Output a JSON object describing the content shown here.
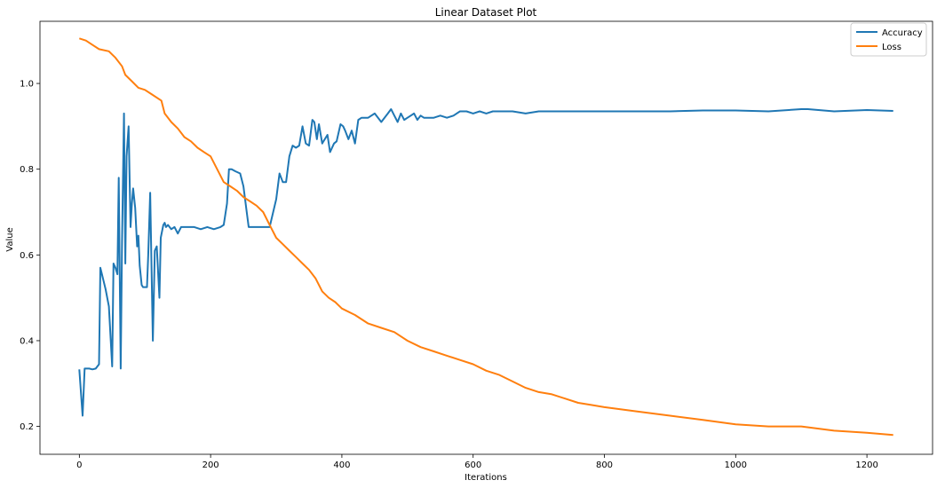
{
  "chart_data": {
    "type": "line",
    "title": "Linear Dataset Plot",
    "xlabel": "Iterations",
    "ylabel": "Value",
    "xlim": [
      -60,
      1300
    ],
    "ylim": [
      0.135,
      1.145
    ],
    "xticks": [
      0,
      200,
      400,
      600,
      800,
      1000,
      1200
    ],
    "xtick_labels": [
      "0",
      "200",
      "400",
      "600",
      "800",
      "1000",
      "1200"
    ],
    "yticks": [
      0.2,
      0.4,
      0.6,
      0.8,
      1.0
    ],
    "ytick_labels": [
      "0.2",
      "0.4",
      "0.6",
      "0.8",
      "1.0"
    ],
    "grid": false,
    "legend_position": "top-right",
    "series": [
      {
        "name": "Accuracy",
        "color": "#1f77b4",
        "x": [
          0,
          5,
          8,
          15,
          20,
          25,
          30,
          32,
          40,
          45,
          50,
          52,
          55,
          58,
          60,
          63,
          65,
          68,
          70,
          72,
          75,
          78,
          80,
          82,
          85,
          88,
          90,
          92,
          95,
          97,
          100,
          103,
          105,
          108,
          112,
          115,
          118,
          122,
          124,
          128,
          130,
          132,
          135,
          140,
          145,
          150,
          155,
          158,
          165,
          175,
          185,
          195,
          205,
          215,
          220,
          225,
          228,
          232,
          238,
          245,
          250,
          255,
          258,
          262,
          270,
          280,
          290,
          300,
          305,
          310,
          315,
          320,
          325,
          330,
          335,
          340,
          345,
          350,
          355,
          358,
          362,
          365,
          370,
          372,
          378,
          382,
          388,
          392,
          398,
          402,
          405,
          410,
          415,
          420,
          425,
          430,
          440,
          450,
          460,
          470,
          475,
          480,
          485,
          490,
          495,
          500,
          505,
          510,
          515,
          520,
          525,
          530,
          540,
          550,
          560,
          570,
          580,
          590,
          600,
          610,
          620,
          630,
          640,
          660,
          680,
          700,
          720,
          740,
          760,
          800,
          850,
          870,
          900,
          950,
          1000,
          1050,
          1100,
          1110,
          1150,
          1200,
          1240
        ],
        "values": [
          0.333,
          0.225,
          0.335,
          0.335,
          0.333,
          0.335,
          0.345,
          0.57,
          0.52,
          0.48,
          0.34,
          0.58,
          0.57,
          0.555,
          0.78,
          0.335,
          0.63,
          0.93,
          0.58,
          0.83,
          0.9,
          0.665,
          0.72,
          0.755,
          0.71,
          0.62,
          0.645,
          0.575,
          0.53,
          0.525,
          0.525,
          0.525,
          0.6,
          0.745,
          0.4,
          0.61,
          0.62,
          0.5,
          0.64,
          0.67,
          0.675,
          0.665,
          0.67,
          0.66,
          0.665,
          0.65,
          0.665,
          0.665,
          0.665,
          0.665,
          0.66,
          0.665,
          0.66,
          0.665,
          0.67,
          0.72,
          0.8,
          0.8,
          0.795,
          0.79,
          0.76,
          0.7,
          0.665,
          0.665,
          0.665,
          0.665,
          0.665,
          0.73,
          0.79,
          0.77,
          0.77,
          0.83,
          0.855,
          0.85,
          0.855,
          0.9,
          0.86,
          0.855,
          0.915,
          0.91,
          0.87,
          0.905,
          0.86,
          0.865,
          0.88,
          0.84,
          0.86,
          0.865,
          0.905,
          0.9,
          0.89,
          0.87,
          0.89,
          0.86,
          0.915,
          0.92,
          0.92,
          0.93,
          0.91,
          0.93,
          0.94,
          0.925,
          0.91,
          0.93,
          0.915,
          0.92,
          0.925,
          0.93,
          0.915,
          0.925,
          0.92,
          0.92,
          0.92,
          0.925,
          0.92,
          0.925,
          0.935,
          0.935,
          0.93,
          0.935,
          0.93,
          0.935,
          0.935,
          0.935,
          0.93,
          0.935,
          0.935,
          0.935,
          0.935,
          0.935,
          0.935,
          0.935,
          0.935,
          0.937,
          0.937,
          0.935,
          0.94,
          0.94,
          0.935,
          0.938,
          0.936
        ]
      },
      {
        "name": "Loss",
        "color": "#ff7f0e",
        "x": [
          0,
          10,
          20,
          30,
          45,
          55,
          65,
          70,
          80,
          90,
          100,
          110,
          125,
          130,
          140,
          150,
          160,
          170,
          180,
          190,
          200,
          210,
          220,
          230,
          240,
          250,
          260,
          270,
          280,
          290,
          300,
          310,
          320,
          330,
          340,
          350,
          360,
          370,
          380,
          390,
          400,
          420,
          440,
          460,
          480,
          500,
          520,
          540,
          560,
          580,
          600,
          620,
          640,
          660,
          680,
          700,
          720,
          740,
          760,
          780,
          800,
          850,
          900,
          950,
          1000,
          1050,
          1100,
          1150,
          1200,
          1240
        ],
        "values": [
          1.105,
          1.1,
          1.09,
          1.08,
          1.075,
          1.06,
          1.04,
          1.02,
          1.005,
          0.99,
          0.985,
          0.975,
          0.96,
          0.93,
          0.91,
          0.895,
          0.875,
          0.865,
          0.85,
          0.84,
          0.83,
          0.8,
          0.77,
          0.76,
          0.75,
          0.735,
          0.725,
          0.715,
          0.7,
          0.67,
          0.64,
          0.625,
          0.61,
          0.595,
          0.58,
          0.565,
          0.545,
          0.515,
          0.5,
          0.49,
          0.475,
          0.46,
          0.44,
          0.43,
          0.42,
          0.4,
          0.385,
          0.375,
          0.365,
          0.355,
          0.345,
          0.33,
          0.32,
          0.305,
          0.29,
          0.28,
          0.275,
          0.265,
          0.255,
          0.25,
          0.245,
          0.235,
          0.225,
          0.215,
          0.205,
          0.2,
          0.2,
          0.19,
          0.185,
          0.18
        ]
      }
    ]
  }
}
